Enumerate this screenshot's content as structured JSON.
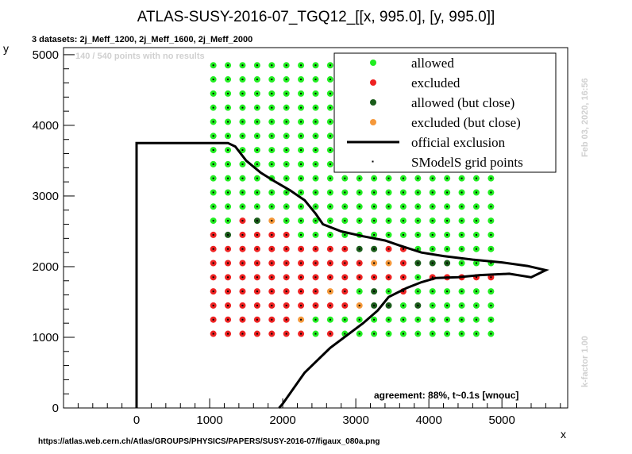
{
  "title": "ATLAS-SUSY-2016-07_TGQ12_[[x, 995.0], [y, 995.0]]",
  "subtitle": "3 datasets: 2j_Meff_1200, 2j_Meff_1600, 2j_Meff_2000",
  "no_results_note": "140 / 540 points with no results",
  "agreement": "agreement: 88%, t~0.1s [wnouc]",
  "timestamp": "Feb 03, 2020, 16:56",
  "kfactor": "k-factor 1.00",
  "url": "https://atlas.web.cern.ch/Atlas/GROUPS/PHYSICS/PAPERS/SUSY-2016-07/figaux_080a.png",
  "colors": {
    "allowed": "#22ee22",
    "excluded": "#ee2222",
    "allowed_close": "#1a5c1a",
    "excluded_close": "#f5983a",
    "faded": "#c8f5c8",
    "line": "#000000"
  },
  "legend": {
    "position": "top-right",
    "items": [
      "allowed",
      "excluded",
      "allowed (but close)",
      "excluded (but close)",
      "official exclusion",
      "SModelS grid points"
    ]
  },
  "chart_data": {
    "type": "scatter",
    "xlabel": "x",
    "ylabel": "y",
    "xlim": [
      -1000,
      5900
    ],
    "ylim": [
      0,
      5100
    ],
    "xticks": [
      0,
      1000,
      2000,
      3000,
      4000,
      5000
    ],
    "yticks": [
      0,
      1000,
      2000,
      3000,
      4000,
      5000
    ],
    "grid": false,
    "grid_x": [
      1050,
      1250,
      1450,
      1650,
      1850,
      2050,
      2250,
      2450,
      2650,
      2850,
      3050,
      3250,
      3450,
      3650,
      3850,
      4050,
      4250,
      4450,
      4650,
      4850
    ],
    "grid_y": [
      1050,
      1250,
      1450,
      1650,
      1850,
      2050,
      2250,
      2450,
      2650,
      2850,
      3050,
      3250,
      3450,
      3650,
      3850,
      4050,
      4250,
      4450,
      4650,
      4850
    ],
    "status_rows": [
      "EEEEEEEAEAAAAAAAAAAA",
      "EEEEEEOAAAAAAAAAAAAA",
      "EEEEEEEEEEOCCACAAAAA",
      "EEEEEEEEOEACAEAAAAAA",
      "EEEEEEEEEEEEEEAEEEEE",
      "EEEEEEEEEEEOOECCCAAA",
      "EEEEEEEEEECCEEAAAAAA",
      "ECEEEEAAAAAAAAAAAAAA",
      "AAECOAAAAAAAAAAAAAAA",
      "AAAAAAAAAAAAAAAAAAAA",
      "AAAAAAAAAAAAAAAAAAAA",
      "AAAAAAAAAAAAAAAAAAAA",
      "AAAAAAAAAAAAAAAAAAAA",
      "AAAAAAAAAAAAAAAAAAAA",
      "AAAAAAAAAAAAAAAAAAAA",
      "AAAAAAAAAAAAAAAAAAAA",
      "AAAAAAAAAAFFFFFFFFFF",
      "AAAAAAAAAAFFFFFFFFFF",
      "AAAAAAAAAAFFFFFFFFFF",
      "AAAAAAAAAAFFFFFFFFFF"
    ],
    "status_key": {
      "A": "allowed",
      "E": "excluded",
      "C": "allowed (but close)",
      "O": "excluded (but close)",
      "F": "faded"
    },
    "official_exclusion": [
      [
        0,
        0
      ],
      [
        0,
        3750
      ],
      [
        1250,
        3750
      ],
      [
        1350,
        3700
      ],
      [
        1500,
        3500
      ],
      [
        1700,
        3330
      ],
      [
        1900,
        3200
      ],
      [
        2100,
        3080
      ],
      [
        2300,
        2940
      ],
      [
        2450,
        2750
      ],
      [
        2550,
        2600
      ],
      [
        2800,
        2500
      ],
      [
        3100,
        2430
      ],
      [
        3400,
        2370
      ],
      [
        3600,
        2300
      ],
      [
        3900,
        2200
      ],
      [
        4200,
        2150
      ],
      [
        4600,
        2100
      ],
      [
        5000,
        2060
      ],
      [
        5350,
        2010
      ],
      [
        5600,
        1950
      ],
      [
        5400,
        1850
      ],
      [
        5100,
        1900
      ],
      [
        4700,
        1880
      ],
      [
        4400,
        1850
      ],
      [
        4100,
        1840
      ],
      [
        3900,
        1780
      ],
      [
        3700,
        1700
      ],
      [
        3450,
        1570
      ],
      [
        3300,
        1380
      ],
      [
        3100,
        1200
      ],
      [
        2650,
        850
      ],
      [
        2300,
        500
      ],
      [
        2000,
        60
      ],
      [
        1950,
        0
      ]
    ]
  }
}
